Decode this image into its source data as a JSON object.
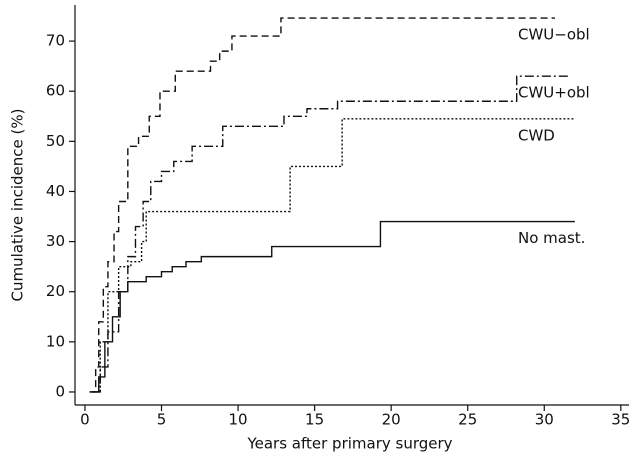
{
  "chart_data": {
    "type": "line",
    "step": "post",
    "x_label": "Years after primary surgery",
    "y_label": "Cumulative incidence (%)",
    "xlim": [
      -0.65,
      35.6
    ],
    "ylim": [
      -2.6,
      77.2
    ],
    "xticks": [
      0,
      5,
      10,
      15,
      20,
      25,
      30,
      35
    ],
    "yticks": [
      0,
      10,
      20,
      30,
      40,
      50,
      60,
      70
    ],
    "series": [
      {
        "name": "CWU−obl",
        "color": "#111111",
        "linestyle": "dashed",
        "x": [
          0.3,
          0.7,
          0.9,
          1.2,
          1.5,
          1.9,
          2.2,
          2.8,
          3.5,
          4.2,
          4.9,
          5.9,
          8.2,
          8.8,
          9.6,
          12.8,
          30.7
        ],
        "values": [
          0,
          5,
          14,
          21,
          26,
          32,
          38,
          49,
          51,
          55,
          60,
          64,
          66,
          68,
          71,
          74.6,
          74.6
        ]
      },
      {
        "name": "CWU+obl",
        "color": "#111111",
        "linestyle": "dashdot",
        "x": [
          0.5,
          1.0,
          1.5,
          2.2,
          2.8,
          3.3,
          3.8,
          4.3,
          5.0,
          5.8,
          7.0,
          9.0,
          13.0,
          14.5,
          16.5,
          28.2,
          31.7
        ],
        "values": [
          0,
          5,
          12,
          20,
          27,
          33,
          38,
          42,
          44,
          46,
          49,
          53,
          55,
          56.5,
          58,
          63,
          63
        ]
      },
      {
        "name": "CWD",
        "color": "#111111",
        "linestyle": "dotted",
        "x": [
          0.5,
          1.0,
          1.5,
          2.2,
          3.0,
          3.7,
          4.0,
          13.4,
          16.8,
          32.0
        ],
        "values": [
          0,
          10,
          20,
          25,
          26,
          30,
          36,
          45,
          54.5,
          54.5
        ]
      },
      {
        "name": "No mast.",
        "color": "#111111",
        "linestyle": "solid",
        "x": [
          0.3,
          0.9,
          1.3,
          1.8,
          2.3,
          2.8,
          4.0,
          5.0,
          5.7,
          6.6,
          7.6,
          12.2,
          19.3,
          32.0
        ],
        "values": [
          0,
          3,
          10,
          15,
          20,
          22,
          23,
          24,
          25,
          26,
          27,
          29,
          34,
          34
        ]
      }
    ]
  }
}
